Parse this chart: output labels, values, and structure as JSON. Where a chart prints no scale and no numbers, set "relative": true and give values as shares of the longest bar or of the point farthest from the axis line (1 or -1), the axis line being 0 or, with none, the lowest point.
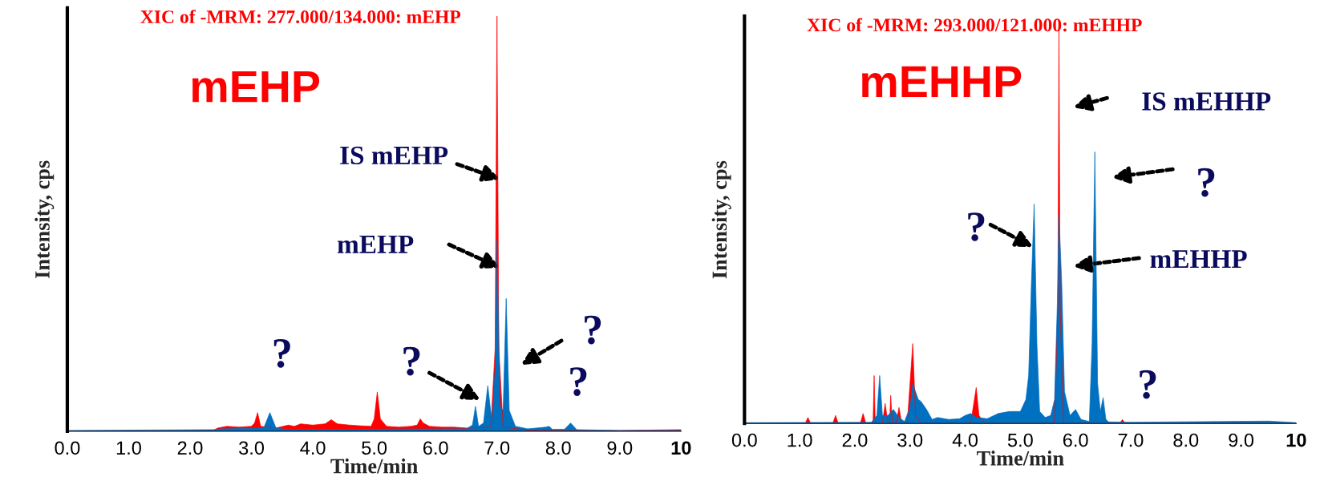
{
  "chart_data": [
    {
      "type": "area",
      "relative": true,
      "xlabel": "Time/min",
      "ylabel": "Intensity, cps",
      "xlim": [
        0,
        10
      ],
      "xticks": [
        {
          "value": 0,
          "label": "0.0"
        },
        {
          "value": 1,
          "label": "1.0"
        },
        {
          "value": 2,
          "label": "2.0"
        },
        {
          "value": 3,
          "label": "3.0"
        },
        {
          "value": 4,
          "label": "4.0"
        },
        {
          "value": 5,
          "label": "5.0"
        },
        {
          "value": 6,
          "label": "6.0"
        },
        {
          "value": 7,
          "label": "7.0"
        },
        {
          "value": 8,
          "label": "8.0"
        },
        {
          "value": 9,
          "label": "9.0"
        },
        10
      ],
      "series": [
        {
          "color": "#ff0000",
          "x": [
            0,
            1,
            2,
            2.35,
            2.45,
            2.6,
            2.8,
            3.0,
            3.05,
            3.1,
            3.15,
            3.25,
            3.4,
            3.6,
            3.7,
            3.8,
            4.0,
            4.2,
            4.3,
            4.4,
            4.6,
            4.8,
            4.95,
            5.0,
            5.05,
            5.1,
            5.2,
            5.4,
            5.6,
            5.7,
            5.75,
            5.8,
            5.9,
            6.1,
            6.3,
            6.5,
            6.6,
            6.9,
            6.97,
            7.0,
            7.03,
            7.1,
            7.5,
            8,
            9,
            10
          ],
          "values": [
            0,
            0,
            0,
            0,
            0.008,
            0.012,
            0.01,
            0.012,
            0.02,
            0.045,
            0.012,
            0.01,
            0.008,
            0.015,
            0.012,
            0.018,
            0.015,
            0.018,
            0.028,
            0.018,
            0.015,
            0.013,
            0.012,
            0.03,
            0.095,
            0.03,
            0.012,
            0.01,
            0.012,
            0.015,
            0.03,
            0.02,
            0.012,
            0.01,
            0.01,
            0.008,
            0.008,
            0.01,
            0.2,
            1,
            0.2,
            0.01,
            0.003,
            0.002,
            0.002,
            0.004
          ]
        },
        {
          "color": "#0070c0",
          "x": [
            0,
            2.4,
            2.5,
            3.2,
            3.3,
            3.4,
            3.6,
            5,
            6.5,
            6.6,
            6.65,
            6.7,
            6.78,
            6.85,
            6.92,
            6.97,
            7.0,
            7.05,
            7.1,
            7.15,
            7.2,
            7.3,
            7.5,
            7.8,
            7.85,
            7.9,
            8.1,
            8.2,
            8.3,
            9,
            10
          ],
          "values": [
            0.002,
            0.004,
            0.006,
            0.008,
            0.045,
            0.008,
            0.004,
            0.005,
            0.006,
            0.015,
            0.06,
            0.012,
            0.02,
            0.11,
            0.02,
            0.15,
            0.46,
            0.06,
            0.05,
            0.32,
            0.05,
            0.012,
            0.006,
            0.01,
            0.012,
            0.005,
            0.005,
            0.02,
            0.004,
            0.002,
            0.002
          ]
        }
      ],
      "annotations": [
        "XIC of -MRM: 277.000/134.000: mEHP",
        "mEHP",
        "IS mEHP",
        "mEHP",
        "?",
        "?",
        {
          "text": "?",
          "x": 3.3,
          "y": 0.045
        },
        {
          "text": "?",
          "x": 8.2,
          "y": 0.02
        }
      ]
    },
    {
      "type": "area",
      "relative": true,
      "xlabel": "Time/min",
      "ylabel": "Intensity, cps",
      "xlim": [
        0,
        10
      ],
      "xticks": [
        {
          "value": 0,
          "label": "0.0"
        },
        {
          "value": 1,
          "label": "1.0"
        },
        {
          "value": 2,
          "label": "2.0"
        },
        {
          "value": 3,
          "label": "3.0"
        },
        {
          "value": 4,
          "label": "4.0"
        },
        {
          "value": 5,
          "label": "5.0"
        },
        {
          "value": 6,
          "label": "6.0"
        },
        {
          "value": 7,
          "label": "7.0"
        },
        {
          "value": 8,
          "label": "8.0"
        },
        {
          "value": 9,
          "label": "9.0"
        },
        10
      ],
      "series": [
        {
          "color": "#ff0000",
          "x": [
            0,
            1.1,
            1.15,
            1.2,
            1.6,
            1.65,
            1.7,
            2.1,
            2.15,
            2.2,
            2.33,
            2.35,
            2.37,
            2.5,
            2.55,
            2.6,
            2.63,
            2.65,
            2.68,
            2.75,
            2.8,
            2.85,
            2.95,
            3.05,
            3.1,
            3.2,
            4.1,
            4.2,
            4.25,
            4.35,
            5.62,
            5.68,
            5.7,
            5.72,
            5.78,
            6.8,
            6.85,
            6.9,
            7,
            10
          ],
          "values": [
            0,
            0,
            0.015,
            0,
            0,
            0.02,
            0,
            0,
            0.025,
            0,
            0,
            0.12,
            0,
            0,
            0.05,
            0,
            0,
            0.07,
            0,
            0,
            0.04,
            0,
            0,
            0.2,
            0.02,
            0,
            0,
            0.09,
            0.02,
            0,
            0,
            0.3,
            1,
            0.3,
            0,
            0,
            0.01,
            0,
            0,
            0
          ]
        },
        {
          "color": "#0070c0",
          "x": [
            0,
            2.3,
            2.4,
            2.45,
            2.5,
            2.6,
            2.7,
            2.8,
            2.9,
            3.0,
            3.05,
            3.15,
            3.2,
            3.3,
            3.4,
            3.5,
            3.7,
            3.9,
            4.0,
            4.1,
            4.2,
            4.4,
            4.6,
            4.8,
            5.0,
            5.1,
            5.15,
            5.2,
            5.25,
            5.3,
            5.35,
            5.45,
            5.55,
            5.62,
            5.67,
            5.7,
            5.75,
            5.8,
            5.9,
            6.0,
            6.1,
            6.25,
            6.3,
            6.35,
            6.4,
            6.45,
            6.5,
            6.55,
            6.6,
            7,
            9.5,
            10
          ],
          "values": [
            0.002,
            0.003,
            0.02,
            0.12,
            0.02,
            0.02,
            0.035,
            0.015,
            0.005,
            0.04,
            0.1,
            0.06,
            0.055,
            0.035,
            0.01,
            0.015,
            0.01,
            0.012,
            0.02,
            0.025,
            0.015,
            0.012,
            0.025,
            0.03,
            0.03,
            0.06,
            0.12,
            0.35,
            0.55,
            0.2,
            0.03,
            0.015,
            0.02,
            0.06,
            0.3,
            0.52,
            0.35,
            0.08,
            0.02,
            0.035,
            0.01,
            0.005,
            0.2,
            0.68,
            0.1,
            0.03,
            0.065,
            0.01,
            0.004,
            0.003,
            0.006,
            0.002
          ]
        }
      ],
      "annotations": [
        "XIC of -MRM: 293.000/121.000: mEHHP",
        "mEHHP",
        "IS mEHHP",
        "mEHHP",
        "?",
        "?",
        "?"
      ]
    }
  ]
}
